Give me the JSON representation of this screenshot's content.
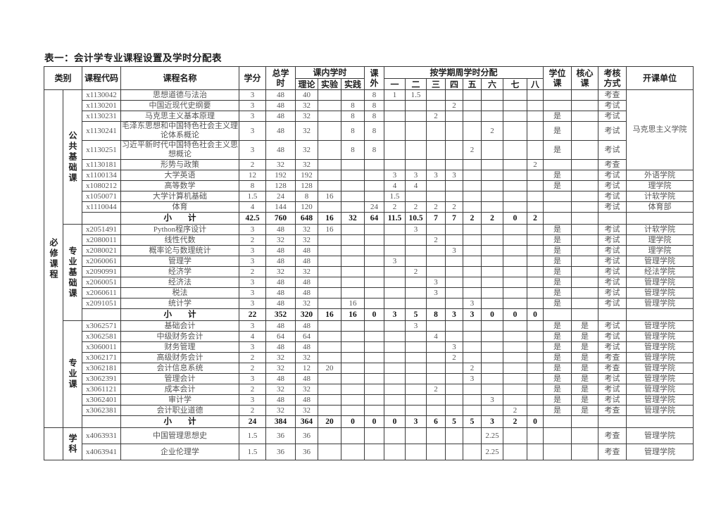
{
  "title": "表一：会计学专业课程设置及学时分配表",
  "header": {
    "category": "类别",
    "course_code": "课程代码",
    "course_name": "课程名称",
    "credits": "学分",
    "total_hours": "总学\n时",
    "in_class": "课内学时",
    "theory": "理论",
    "experiment": "实验",
    "practice": "实践",
    "extra": "课\n外",
    "semester_group": "按学期周学时分配",
    "semesters": [
      "一",
      "二",
      "三",
      "四",
      "五",
      "六",
      "七",
      "八"
    ],
    "degree": "学位\n课",
    "core": "核心\n课",
    "assessment": "考核\n方式",
    "unit": "开课单位"
  },
  "groups": [
    {
      "category": "必修课程",
      "sections": [
        {
          "name": "公共基础课",
          "rows": [
            {
              "code": "x1130042",
              "name": "思想道德与法治",
              "credits": "3",
              "total": "48",
              "theory": "40",
              "exp": "",
              "prac": "",
              "extra": "8",
              "sems": [
                "1",
                "1.5",
                "",
                "",
                "",
                "",
                "",
                ""
              ],
              "degree": "",
              "core": "",
              "assess": "考查",
              "unit": "马克思主义学院",
              "unit_span": 6
            },
            {
              "code": "x1130201",
              "name": "中国近现代史纲要",
              "credits": "3",
              "total": "48",
              "theory": "32",
              "exp": "",
              "prac": "8",
              "extra": "8",
              "sems": [
                "",
                "",
                "",
                "2",
                "",
                "",
                "",
                ""
              ],
              "degree": "",
              "core": "",
              "assess": "考试",
              "unit_merged": true
            },
            {
              "code": "x1130231",
              "name": "马克思主义基本原理",
              "credits": "3",
              "total": "48",
              "theory": "32",
              "exp": "",
              "prac": "8",
              "extra": "8",
              "sems": [
                "",
                "",
                "2",
                "",
                "",
                "",
                "",
                ""
              ],
              "degree": "是",
              "core": "",
              "assess": "考试",
              "unit_merged": true
            },
            {
              "code": "x1130241",
              "name": "毛泽东思想和中国特色社会主义理论体系概论",
              "credits": "3",
              "total": "48",
              "theory": "32",
              "exp": "",
              "prac": "8",
              "extra": "8",
              "sems": [
                "",
                "",
                "",
                "",
                "",
                "2",
                "",
                ""
              ],
              "degree": "是",
              "core": "",
              "assess": "考试",
              "unit_merged": true
            },
            {
              "code": "x1130251",
              "name": "习近平新时代中国特色社会主义思想概论",
              "credits": "3",
              "total": "48",
              "theory": "32",
              "exp": "",
              "prac": "8",
              "extra": "8",
              "sems": [
                "",
                "",
                "",
                "",
                "2",
                "",
                "",
                ""
              ],
              "degree": "是",
              "core": "",
              "assess": "考试",
              "unit_merged": true
            },
            {
              "code": "x1130181",
              "name": "形势与政策",
              "credits": "2",
              "total": "32",
              "theory": "32",
              "exp": "",
              "prac": "",
              "extra": "",
              "sems": [
                "",
                "",
                "",
                "",
                "",
                "",
                "",
                "2"
              ],
              "degree": "",
              "core": "",
              "assess": "考查",
              "unit_merged": true
            },
            {
              "code": "x1100134",
              "name": "大学英语",
              "credits": "12",
              "total": "192",
              "theory": "192",
              "exp": "",
              "prac": "",
              "extra": "",
              "sems": [
                "3",
                "3",
                "3",
                "3",
                "",
                "",
                "",
                ""
              ],
              "degree": "是",
              "core": "",
              "assess": "考试",
              "unit": "外语学院"
            },
            {
              "code": "x1080212",
              "name": "高等数学",
              "credits": "8",
              "total": "128",
              "theory": "128",
              "exp": "",
              "prac": "",
              "extra": "",
              "sems": [
                "4",
                "4",
                "",
                "",
                "",
                "",
                "",
                ""
              ],
              "degree": "是",
              "core": "",
              "assess": "考试",
              "unit": "理学院"
            },
            {
              "code": "x1050071",
              "name": "大学计算机基础",
              "credits": "1.5",
              "total": "24",
              "theory": "8",
              "exp": "16",
              "prac": "",
              "extra": "",
              "sems": [
                "1.5",
                "",
                "",
                "",
                "",
                "",
                "",
                ""
              ],
              "degree": "",
              "core": "",
              "assess": "考试",
              "unit": "计软学院"
            },
            {
              "code": "x1110044",
              "name": "体育",
              "credits": "4",
              "total": "144",
              "theory": "120",
              "exp": "",
              "prac": "",
              "extra": "24",
              "sems": [
                "2",
                "2",
                "2",
                "2",
                "",
                "",
                "",
                ""
              ],
              "degree": "",
              "core": "",
              "assess": "考试",
              "unit": "体育部"
            }
          ],
          "subtotal": {
            "label": "小　　计",
            "credits": "42.5",
            "total": "760",
            "theory": "648",
            "exp": "16",
            "prac": "32",
            "extra": "64",
            "sems": [
              "11.5",
              "10.5",
              "7",
              "7",
              "2",
              "2",
              "0",
              "2"
            ]
          }
        },
        {
          "name": "专业基础课",
          "rows": [
            {
              "code": "x2051491",
              "name": "Python程序设计",
              "credits": "3",
              "total": "48",
              "theory": "32",
              "exp": "16",
              "prac": "",
              "extra": "",
              "sems": [
                "",
                "3",
                "",
                "",
                "",
                "",
                "",
                ""
              ],
              "degree": "是",
              "core": "",
              "assess": "考试",
              "unit": "计软学院"
            },
            {
              "code": "x2080011",
              "name": "线性代数",
              "credits": "2",
              "total": "32",
              "theory": "32",
              "exp": "",
              "prac": "",
              "extra": "",
              "sems": [
                "",
                "",
                "2",
                "",
                "",
                "",
                "",
                ""
              ],
              "degree": "是",
              "core": "",
              "assess": "考试",
              "unit": "理学院"
            },
            {
              "code": "x2080021",
              "name": "概率论与数理统计",
              "credits": "3",
              "total": "48",
              "theory": "48",
              "exp": "",
              "prac": "",
              "extra": "",
              "sems": [
                "",
                "",
                "",
                "3",
                "",
                "",
                "",
                ""
              ],
              "degree": "是",
              "core": "",
              "assess": "考试",
              "unit": "理学院"
            },
            {
              "code": "x2060061",
              "name": "管理学",
              "credits": "3",
              "total": "48",
              "theory": "48",
              "exp": "",
              "prac": "",
              "extra": "",
              "sems": [
                "3",
                "",
                "",
                "",
                "",
                "",
                "",
                ""
              ],
              "degree": "是",
              "core": "",
              "assess": "考试",
              "unit": "管理学院"
            },
            {
              "code": "x2090991",
              "name": "经济学",
              "credits": "2",
              "total": "32",
              "theory": "32",
              "exp": "",
              "prac": "",
              "extra": "",
              "sems": [
                "",
                "2",
                "",
                "",
                "",
                "",
                "",
                ""
              ],
              "degree": "是",
              "core": "",
              "assess": "考试",
              "unit": "经法学院"
            },
            {
              "code": "x2060051",
              "name": "经济法",
              "credits": "3",
              "total": "48",
              "theory": "48",
              "exp": "",
              "prac": "",
              "extra": "",
              "sems": [
                "",
                "",
                "3",
                "",
                "",
                "",
                "",
                ""
              ],
              "degree": "是",
              "core": "",
              "assess": "考试",
              "unit": "管理学院"
            },
            {
              "code": "x2060611",
              "name": "税法",
              "credits": "3",
              "total": "48",
              "theory": "48",
              "exp": "",
              "prac": "",
              "extra": "",
              "sems": [
                "",
                "",
                "3",
                "",
                "",
                "",
                "",
                ""
              ],
              "degree": "是",
              "core": "",
              "assess": "考试",
              "unit": "管理学院"
            },
            {
              "code": "x2091051",
              "name": "统计学",
              "credits": "3",
              "total": "48",
              "theory": "32",
              "exp": "",
              "prac": "16",
              "extra": "",
              "sems": [
                "",
                "",
                "",
                "",
                "3",
                "",
                "",
                ""
              ],
              "degree": "是",
              "core": "",
              "assess": "考试",
              "unit": "管理学院"
            }
          ],
          "subtotal": {
            "label": "小　　计",
            "credits": "22",
            "total": "352",
            "theory": "320",
            "exp": "16",
            "prac": "16",
            "extra": "0",
            "sems": [
              "3",
              "5",
              "8",
              "3",
              "3",
              "0",
              "0",
              "0"
            ]
          }
        },
        {
          "name": "专业课",
          "rows": [
            {
              "code": "x3062571",
              "name": "基础会计",
              "credits": "3",
              "total": "48",
              "theory": "48",
              "exp": "",
              "prac": "",
              "extra": "",
              "sems": [
                "",
                "3",
                "",
                "",
                "",
                "",
                "",
                ""
              ],
              "degree": "是",
              "core": "是",
              "assess": "考试",
              "unit": "管理学院"
            },
            {
              "code": "x3062581",
              "name": "中级财务会计",
              "credits": "4",
              "total": "64",
              "theory": "64",
              "exp": "",
              "prac": "",
              "extra": "",
              "sems": [
                "",
                "",
                "4",
                "",
                "",
                "",
                "",
                ""
              ],
              "degree": "是",
              "core": "是",
              "assess": "考试",
              "unit": "管理学院"
            },
            {
              "code": "x3060011",
              "name": "财务管理",
              "credits": "3",
              "total": "48",
              "theory": "48",
              "exp": "",
              "prac": "",
              "extra": "",
              "sems": [
                "",
                "",
                "",
                "3",
                "",
                "",
                "",
                ""
              ],
              "degree": "是",
              "core": "是",
              "assess": "考试",
              "unit": "管理学院"
            },
            {
              "code": "x3062171",
              "name": "高级财务会计",
              "credits": "2",
              "total": "32",
              "theory": "32",
              "exp": "",
              "prac": "",
              "extra": "",
              "sems": [
                "",
                "",
                "",
                "2",
                "",
                "",
                "",
                ""
              ],
              "degree": "是",
              "core": "是",
              "assess": "考查",
              "unit": "管理学院"
            },
            {
              "code": "x3062181",
              "name": "会计信息系统",
              "credits": "2",
              "total": "32",
              "theory": "12",
              "exp": "20",
              "prac": "",
              "extra": "",
              "sems": [
                "",
                "",
                "",
                "",
                "2",
                "",
                "",
                ""
              ],
              "degree": "是",
              "core": "是",
              "assess": "考查",
              "unit": "管理学院"
            },
            {
              "code": "x3062391",
              "name": "管理会计",
              "credits": "3",
              "total": "48",
              "theory": "48",
              "exp": "",
              "prac": "",
              "extra": "",
              "sems": [
                "",
                "",
                "",
                "",
                "3",
                "",
                "",
                ""
              ],
              "degree": "是",
              "core": "是",
              "assess": "考试",
              "unit": "管理学院"
            },
            {
              "code": "x3061121",
              "name": "成本会计",
              "credits": "2",
              "total": "32",
              "theory": "32",
              "exp": "",
              "prac": "",
              "extra": "",
              "sems": [
                "",
                "",
                "2",
                "",
                "",
                "",
                "",
                ""
              ],
              "degree": "是",
              "core": "是",
              "assess": "考试",
              "unit": "管理学院"
            },
            {
              "code": "x3062401",
              "name": "审计学",
              "credits": "3",
              "total": "48",
              "theory": "48",
              "exp": "",
              "prac": "",
              "extra": "",
              "sems": [
                "",
                "",
                "",
                "",
                "",
                "3",
                "",
                ""
              ],
              "degree": "是",
              "core": "是",
              "assess": "考试",
              "unit": "管理学院"
            },
            {
              "code": "x3062381",
              "name": "会计职业道德",
              "credits": "2",
              "total": "32",
              "theory": "32",
              "exp": "",
              "prac": "",
              "extra": "",
              "sems": [
                "",
                "",
                "",
                "",
                "",
                "",
                "2",
                ""
              ],
              "degree": "是",
              "core": "是",
              "assess": "考查",
              "unit": "管理学院"
            }
          ],
          "subtotal": {
            "label": "小　　计",
            "credits": "24",
            "total": "384",
            "theory": "364",
            "exp": "20",
            "prac": "0",
            "extra": "0",
            "sems": [
              "0",
              "3",
              "6",
              "5",
              "5",
              "3",
              "2",
              "0"
            ]
          }
        }
      ]
    },
    {
      "category": "",
      "sections": [
        {
          "name": "学科",
          "rows": [
            {
              "code": "x4063931",
              "name": "中国管理思想史",
              "credits": "1.5",
              "total": "36",
              "theory": "36",
              "exp": "",
              "prac": "",
              "extra": "",
              "sems": [
                "",
                "",
                "",
                "",
                "",
                "2.25",
                "",
                ""
              ],
              "degree": "",
              "core": "",
              "assess": "考查",
              "unit": "管理学院",
              "tall": true
            },
            {
              "code": "x4063941",
              "name": "企业伦理学",
              "credits": "1.5",
              "total": "36",
              "theory": "36",
              "exp": "",
              "prac": "",
              "extra": "",
              "sems": [
                "",
                "",
                "",
                "",
                "",
                "2.25",
                "",
                ""
              ],
              "degree": "",
              "core": "",
              "assess": "考查",
              "unit": "管理学院",
              "tall": true
            }
          ],
          "subtotal": null
        }
      ]
    }
  ]
}
